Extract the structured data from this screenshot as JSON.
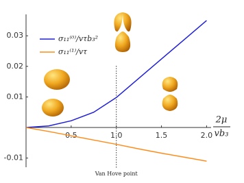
{
  "chart_data": {
    "type": "line",
    "x": [
      0,
      0.25,
      0.5,
      0.75,
      1,
      1.25,
      1.5,
      1.75,
      2
    ],
    "series": [
      {
        "name": "σ₁₁⁽⁰⁾/vτb₃²",
        "color": "#1f1fd6",
        "values": [
          0,
          0.0005,
          0.0022,
          0.005,
          0.0098,
          0.0161,
          0.0224,
          0.0287,
          0.035
        ]
      },
      {
        "name": "σ₁₁⁽¹⁾/vτ",
        "color": "#ff8c1a",
        "values": [
          0,
          -0.0013,
          -0.0027,
          -0.0041,
          -0.0055,
          -0.007,
          -0.0084,
          -0.0097,
          -0.011
        ]
      }
    ],
    "x_label": {
      "numerator": "2μ",
      "denominator": "vb₃"
    },
    "annotation": {
      "x": 1,
      "label": "Van Hove point"
    },
    "xlim": [
      0,
      2.05
    ],
    "ylim": [
      -0.013,
      0.037
    ],
    "xticks": [
      0.5,
      {
        "value": 1,
        "label": "1.0"
      },
      1.5,
      {
        "value": 2,
        "label": "2.0"
      }
    ],
    "yticks": [
      -0.01,
      0.01,
      0.02,
      0.03
    ]
  }
}
